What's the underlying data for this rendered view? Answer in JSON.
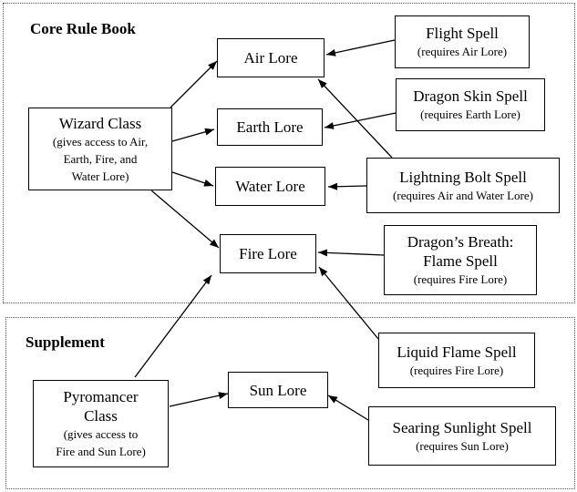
{
  "sections": {
    "core": {
      "title": "Core Rule Book"
    },
    "supplement": {
      "title": "Supplement"
    }
  },
  "nodes": {
    "wizard": {
      "lines": [
        "Wizard Class"
      ],
      "sub": [
        "(gives access to Air,",
        "Earth, Fire, and",
        "Water Lore)"
      ]
    },
    "air_lore": {
      "lines": [
        "Air Lore"
      ],
      "sub": []
    },
    "earth_lore": {
      "lines": [
        "Earth Lore"
      ],
      "sub": []
    },
    "water_lore": {
      "lines": [
        "Water Lore"
      ],
      "sub": []
    },
    "fire_lore": {
      "lines": [
        "Fire Lore"
      ],
      "sub": []
    },
    "flight": {
      "lines": [
        "Flight Spell"
      ],
      "sub": [
        "(requires Air Lore)"
      ]
    },
    "dragon_skin": {
      "lines": [
        "Dragon Skin Spell"
      ],
      "sub": [
        "(requires Earth Lore)"
      ]
    },
    "lightning": {
      "lines": [
        "Lightning Bolt Spell"
      ],
      "sub": [
        "(requires Air and Water Lore)"
      ]
    },
    "dragons_breath": {
      "lines": [
        "Dragon’s Breath:",
        "Flame Spell"
      ],
      "sub": [
        "(requires Fire Lore)"
      ]
    },
    "liquid_flame": {
      "lines": [
        "Liquid Flame Spell"
      ],
      "sub": [
        "(requires Fire Lore)"
      ]
    },
    "pyromancer": {
      "lines": [
        "Pyromancer",
        "Class"
      ],
      "sub": [
        "(gives access to",
        "Fire and Sun Lore)"
      ]
    },
    "sun_lore": {
      "lines": [
        "Sun Lore"
      ],
      "sub": []
    },
    "searing": {
      "lines": [
        "Searing Sunlight Spell"
      ],
      "sub": [
        "(requires Sun Lore)"
      ]
    }
  },
  "edges": [
    {
      "from": "wizard",
      "to": "air_lore"
    },
    {
      "from": "wizard",
      "to": "earth_lore"
    },
    {
      "from": "wizard",
      "to": "water_lore"
    },
    {
      "from": "wizard",
      "to": "fire_lore"
    },
    {
      "from": "flight",
      "to": "air_lore"
    },
    {
      "from": "dragon_skin",
      "to": "earth_lore"
    },
    {
      "from": "lightning",
      "to": "water_lore"
    },
    {
      "from": "lightning",
      "to": "air_lore"
    },
    {
      "from": "dragons_breath",
      "to": "fire_lore"
    },
    {
      "from": "liquid_flame",
      "to": "fire_lore"
    },
    {
      "from": "pyromancer",
      "to": "fire_lore"
    },
    {
      "from": "pyromancer",
      "to": "sun_lore"
    },
    {
      "from": "searing",
      "to": "sun_lore"
    }
  ]
}
